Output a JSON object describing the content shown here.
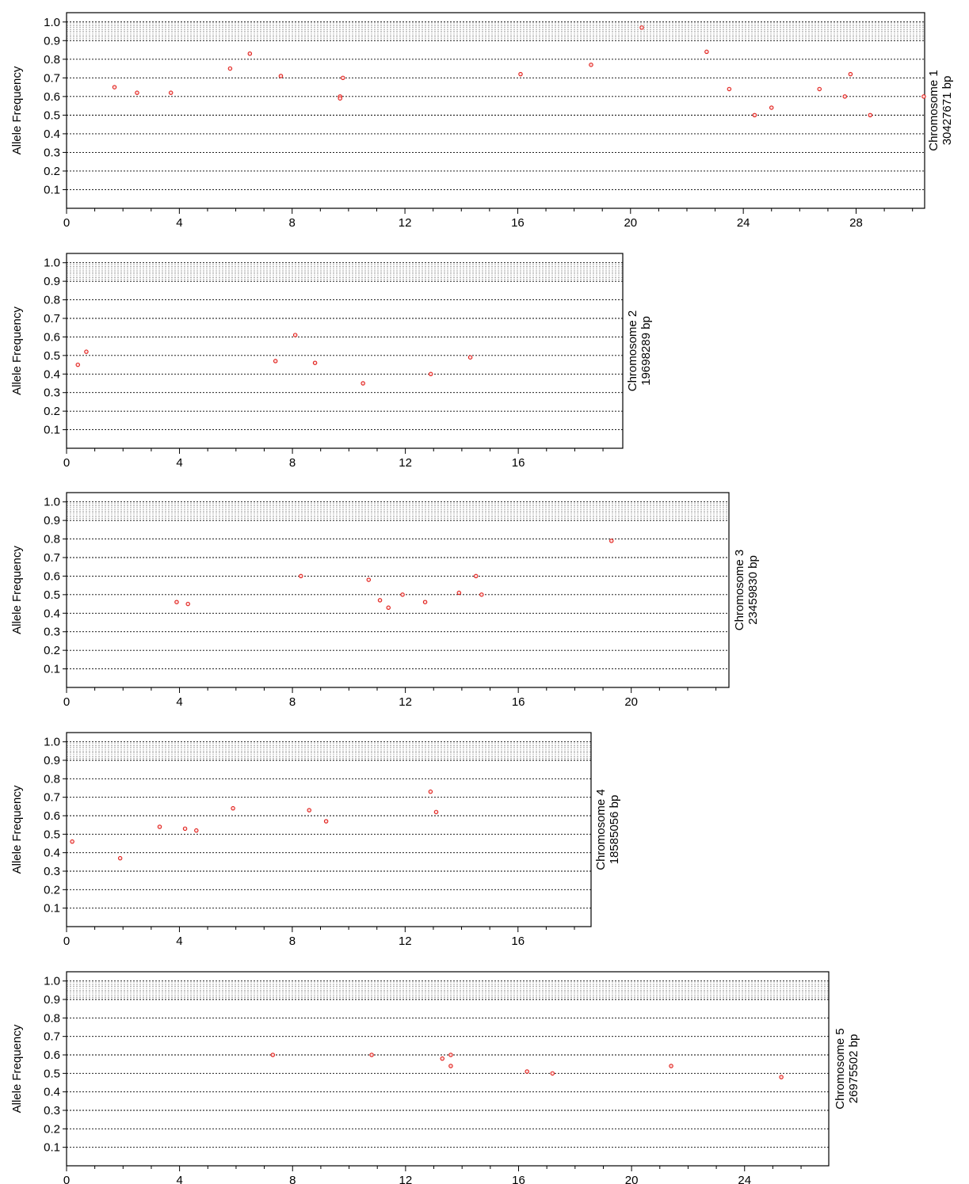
{
  "colors": {
    "point": "#e0201b",
    "grid": "#000000",
    "frame": "#000000"
  },
  "chart_data": [
    {
      "type": "scatter",
      "ylabel": "Allele Frequency",
      "side_label": [
        "Chromosome 1",
        "30427671 bp"
      ],
      "xlim": [
        0,
        30.43
      ],
      "ylim": [
        0,
        1.05
      ],
      "xticks": [
        0,
        4,
        8,
        12,
        16,
        20,
        24,
        28
      ],
      "yticks": [
        0.1,
        0.2,
        0.3,
        0.4,
        0.5,
        0.6,
        0.7,
        0.8,
        0.9,
        1.0
      ],
      "fine_grid": [
        0.91,
        0.92,
        0.93,
        0.94,
        0.95,
        0.96,
        0.97,
        0.98,
        0.99
      ],
      "grid": true,
      "points": [
        {
          "x": 1.7,
          "y": 0.65
        },
        {
          "x": 2.5,
          "y": 0.62
        },
        {
          "x": 3.7,
          "y": 0.62
        },
        {
          "x": 5.8,
          "y": 0.75
        },
        {
          "x": 6.5,
          "y": 0.83
        },
        {
          "x": 7.6,
          "y": 0.71
        },
        {
          "x": 9.7,
          "y": 0.6
        },
        {
          "x": 9.7,
          "y": 0.59
        },
        {
          "x": 9.8,
          "y": 0.7
        },
        {
          "x": 16.1,
          "y": 0.72
        },
        {
          "x": 18.6,
          "y": 0.77
        },
        {
          "x": 20.4,
          "y": 0.97
        },
        {
          "x": 22.7,
          "y": 0.84
        },
        {
          "x": 23.5,
          "y": 0.64
        },
        {
          "x": 24.4,
          "y": 0.5
        },
        {
          "x": 25.0,
          "y": 0.54
        },
        {
          "x": 26.7,
          "y": 0.64
        },
        {
          "x": 27.6,
          "y": 0.6
        },
        {
          "x": 27.8,
          "y": 0.72
        },
        {
          "x": 28.5,
          "y": 0.5
        },
        {
          "x": 30.4,
          "y": 0.6
        }
      ]
    },
    {
      "type": "scatter",
      "ylabel": "Allele Frequency",
      "side_label": [
        "Chromosome 2",
        "19698289 bp"
      ],
      "xlim": [
        0,
        19.7
      ],
      "ylim": [
        0,
        1.05
      ],
      "xticks": [
        0,
        4,
        8,
        12,
        16
      ],
      "yticks": [
        0.1,
        0.2,
        0.3,
        0.4,
        0.5,
        0.6,
        0.7,
        0.8,
        0.9,
        1.0
      ],
      "fine_grid": [
        0.91,
        0.92,
        0.93,
        0.94,
        0.95,
        0.96,
        0.97,
        0.98,
        0.99
      ],
      "grid": true,
      "points": [
        {
          "x": 0.4,
          "y": 0.45
        },
        {
          "x": 0.7,
          "y": 0.52
        },
        {
          "x": 7.4,
          "y": 0.47
        },
        {
          "x": 8.1,
          "y": 0.61
        },
        {
          "x": 8.8,
          "y": 0.46
        },
        {
          "x": 10.5,
          "y": 0.35
        },
        {
          "x": 12.9,
          "y": 0.4
        },
        {
          "x": 14.3,
          "y": 0.49
        }
      ]
    },
    {
      "type": "scatter",
      "ylabel": "Allele Frequency",
      "side_label": [
        "Chromosome 3",
        "23459830 bp"
      ],
      "xlim": [
        0,
        23.46
      ],
      "ylim": [
        0,
        1.05
      ],
      "xticks": [
        0,
        4,
        8,
        12,
        16,
        20
      ],
      "yticks": [
        0.1,
        0.2,
        0.3,
        0.4,
        0.5,
        0.6,
        0.7,
        0.8,
        0.9,
        1.0
      ],
      "fine_grid": [
        0.91,
        0.92,
        0.93,
        0.94,
        0.95,
        0.96,
        0.97,
        0.98,
        0.99
      ],
      "grid": true,
      "points": [
        {
          "x": 3.9,
          "y": 0.46
        },
        {
          "x": 4.3,
          "y": 0.45
        },
        {
          "x": 8.3,
          "y": 0.6
        },
        {
          "x": 10.7,
          "y": 0.58
        },
        {
          "x": 11.1,
          "y": 0.47
        },
        {
          "x": 11.4,
          "y": 0.43
        },
        {
          "x": 11.9,
          "y": 0.5
        },
        {
          "x": 12.7,
          "y": 0.46
        },
        {
          "x": 13.9,
          "y": 0.51
        },
        {
          "x": 14.5,
          "y": 0.6
        },
        {
          "x": 14.7,
          "y": 0.5
        },
        {
          "x": 19.3,
          "y": 0.79
        }
      ]
    },
    {
      "type": "scatter",
      "ylabel": "Allele Frequency",
      "side_label": [
        "Chromosome 4",
        "18585056 bp"
      ],
      "xlim": [
        0,
        18.59
      ],
      "ylim": [
        0,
        1.05
      ],
      "xticks": [
        0,
        4,
        8,
        12,
        16
      ],
      "yticks": [
        0.1,
        0.2,
        0.3,
        0.4,
        0.5,
        0.6,
        0.7,
        0.8,
        0.9,
        1.0
      ],
      "fine_grid": [
        0.91,
        0.92,
        0.93,
        0.94,
        0.95,
        0.96,
        0.97,
        0.98,
        0.99
      ],
      "grid": true,
      "points": [
        {
          "x": 0.2,
          "y": 0.46
        },
        {
          "x": 1.9,
          "y": 0.37
        },
        {
          "x": 3.3,
          "y": 0.54
        },
        {
          "x": 4.2,
          "y": 0.53
        },
        {
          "x": 4.6,
          "y": 0.52
        },
        {
          "x": 5.9,
          "y": 0.64
        },
        {
          "x": 8.6,
          "y": 0.63
        },
        {
          "x": 9.2,
          "y": 0.57
        },
        {
          "x": 12.9,
          "y": 0.73
        },
        {
          "x": 13.1,
          "y": 0.62
        }
      ]
    },
    {
      "type": "scatter",
      "ylabel": "Allele Frequency",
      "side_label": [
        "Chromosome 5",
        "26975502 bp"
      ],
      "xlim": [
        0,
        26.98
      ],
      "ylim": [
        0,
        1.05
      ],
      "xticks": [
        0,
        4,
        8,
        12,
        16,
        20,
        24
      ],
      "yticks": [
        0.1,
        0.2,
        0.3,
        0.4,
        0.5,
        0.6,
        0.7,
        0.8,
        0.9,
        1.0
      ],
      "fine_grid": [
        0.91,
        0.92,
        0.93,
        0.94,
        0.95,
        0.96,
        0.97,
        0.98,
        0.99
      ],
      "grid": true,
      "points": [
        {
          "x": 7.3,
          "y": 0.6
        },
        {
          "x": 10.8,
          "y": 0.6
        },
        {
          "x": 13.3,
          "y": 0.58
        },
        {
          "x": 13.6,
          "y": 0.6
        },
        {
          "x": 13.6,
          "y": 0.54
        },
        {
          "x": 16.3,
          "y": 0.51
        },
        {
          "x": 17.2,
          "y": 0.5
        },
        {
          "x": 21.4,
          "y": 0.54
        },
        {
          "x": 25.3,
          "y": 0.48
        }
      ]
    }
  ]
}
